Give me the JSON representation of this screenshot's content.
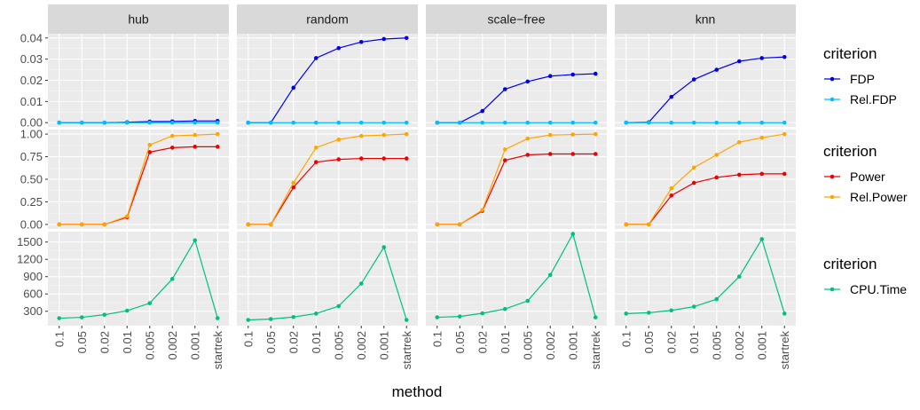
{
  "chart_data": {
    "type": "line",
    "xlabel": "method",
    "categories": [
      "0.1",
      "0.05",
      "0.02",
      "0.01",
      "0.005",
      "0.002",
      "0.001",
      "startrek"
    ],
    "facets": [
      "hub",
      "random",
      "scale−free",
      "knn"
    ],
    "rows": [
      {
        "legend_title": "criterion",
        "ylim": [
          -0.002,
          0.042
        ],
        "ticks": [
          0.0,
          0.01,
          0.02,
          0.03,
          0.04
        ],
        "tick_labels": [
          "0.00",
          "0.01",
          "0.02",
          "0.03",
          "0.04"
        ],
        "series": [
          {
            "name": "FDP",
            "color": "#0000ee",
            "values": [
              [
                0,
                0,
                0,
                0.0002,
                0.0005,
                0.0006,
                0.0008,
                0.0008
              ],
              [
                0,
                0,
                0.0165,
                0.0305,
                0.0352,
                0.0381,
                0.0395,
                0.04
              ],
              [
                0,
                0,
                0.0055,
                0.0158,
                0.0194,
                0.022,
                0.0227,
                0.0231
              ],
              [
                0,
                0.0002,
                0.0122,
                0.0204,
                0.025,
                0.029,
                0.0305,
                0.031
              ]
            ]
          },
          {
            "name": "Rel.FDP",
            "color": "#00bfff",
            "values": [
              [
                0,
                0,
                0,
                0,
                0,
                0,
                0,
                0
              ],
              [
                0,
                0,
                0,
                0,
                0,
                0,
                0,
                0
              ],
              [
                0,
                0,
                0,
                0,
                0,
                0,
                0,
                0
              ],
              [
                0,
                0,
                0,
                0,
                0,
                0,
                0,
                0
              ]
            ]
          }
        ]
      },
      {
        "legend_title": "criterion",
        "ylim": [
          -0.05,
          1.05
        ],
        "ticks": [
          0.0,
          0.25,
          0.5,
          0.75,
          1.0
        ],
        "tick_labels": [
          "0.00",
          "0.25",
          "0.50",
          "0.75",
          "1.00"
        ],
        "series": [
          {
            "name": "Power",
            "color": "#ee0000",
            "values": [
              [
                0,
                0,
                0,
                0.08,
                0.8,
                0.85,
                0.86,
                0.86
              ],
              [
                0,
                0,
                0.41,
                0.69,
                0.72,
                0.73,
                0.73,
                0.73
              ],
              [
                0,
                0,
                0.15,
                0.71,
                0.77,
                0.78,
                0.78,
                0.78
              ],
              [
                0,
                0,
                0.32,
                0.46,
                0.52,
                0.55,
                0.56,
                0.56
              ]
            ]
          },
          {
            "name": "Rel.Power",
            "color": "#ffa500",
            "values": [
              [
                0,
                0,
                0,
                0.09,
                0.88,
                0.98,
                0.99,
                1.0
              ],
              [
                0,
                0,
                0.46,
                0.85,
                0.94,
                0.98,
                0.99,
                1.0
              ],
              [
                0,
                0,
                0.16,
                0.83,
                0.95,
                0.99,
                0.995,
                1.0
              ],
              [
                0,
                0,
                0.4,
                0.63,
                0.77,
                0.91,
                0.96,
                1.0
              ]
            ]
          }
        ]
      },
      {
        "legend_title": "criterion",
        "ylim": [
          50,
          1680
        ],
        "ticks": [
          300,
          600,
          900,
          1200,
          1500
        ],
        "tick_labels": [
          "300",
          "600",
          "900",
          "1200",
          "1500"
        ],
        "series": [
          {
            "name": "CPU.Time",
            "color": "#00c080",
            "values": [
              [
                180,
                195,
                240,
                310,
                440,
                860,
                1530,
                180
              ],
              [
                150,
                165,
                200,
                260,
                390,
                780,
                1410,
                150
              ],
              [
                195,
                210,
                265,
                340,
                480,
                930,
                1640,
                195
              ],
              [
                260,
                275,
                315,
                380,
                510,
                900,
                1550,
                260
              ]
            ]
          }
        ]
      }
    ]
  }
}
